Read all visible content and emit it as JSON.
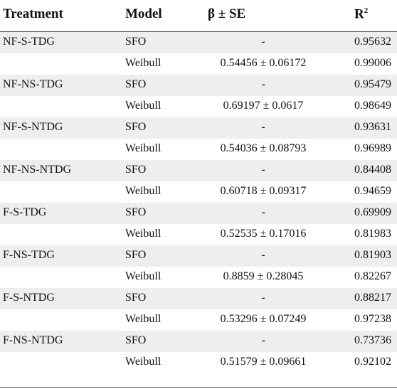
{
  "header": {
    "treatment": "Treatment",
    "model": "Model",
    "beta": "β ± SE",
    "r2_base": "R",
    "r2_sup": "2"
  },
  "rows": [
    {
      "treatment": "NF-S-TDG",
      "model": "SFO",
      "beta": "-",
      "r2": "0.95632"
    },
    {
      "treatment": "",
      "model": "Weibull",
      "beta": "0.54456 ± 0.06172",
      "r2": "0.99006"
    },
    {
      "treatment": "NF-NS-TDG",
      "model": "SFO",
      "beta": "-",
      "r2": "0.95479"
    },
    {
      "treatment": "",
      "model": "Weibull",
      "beta": "0.69197 ± 0.0617",
      "r2": "0.98649"
    },
    {
      "treatment": "NF-S-NTDG",
      "model": "SFO",
      "beta": "-",
      "r2": "0.93631"
    },
    {
      "treatment": "",
      "model": "Weibull",
      "beta": "0.54036 ± 0.08793",
      "r2": "0.96989"
    },
    {
      "treatment": "NF-NS-NTDG",
      "model": "SFO",
      "beta": "-",
      "r2": "0.84408"
    },
    {
      "treatment": "",
      "model": "Weibull",
      "beta": "0.60718 ± 0.09317",
      "r2": "0.94659"
    },
    {
      "treatment": "F-S-TDG",
      "model": "SFO",
      "beta": "-",
      "r2": "0.69909"
    },
    {
      "treatment": "",
      "model": "Weibull",
      "beta": "0.52535 ± 0.17016",
      "r2": "0.81983"
    },
    {
      "treatment": "F-NS-TDG",
      "model": "SFO",
      "beta": "-",
      "r2": "0.81903"
    },
    {
      "treatment": "",
      "model": "Weibull",
      "beta": "0.8859 ± 0.28045",
      "r2": "0.82267"
    },
    {
      "treatment": "F-S-NTDG",
      "model": "SFO",
      "beta": "-",
      "r2": "0.88217"
    },
    {
      "treatment": "",
      "model": "Weibull",
      "beta": "0.53296 ± 0.07249",
      "r2": "0.97238"
    },
    {
      "treatment": "F-NS-NTDG",
      "model": "SFO",
      "beta": "-",
      "r2": "0.73736"
    },
    {
      "treatment": "",
      "model": "Weibull",
      "beta": "0.51579 ± 0.09661",
      "r2": "0.92102"
    }
  ]
}
